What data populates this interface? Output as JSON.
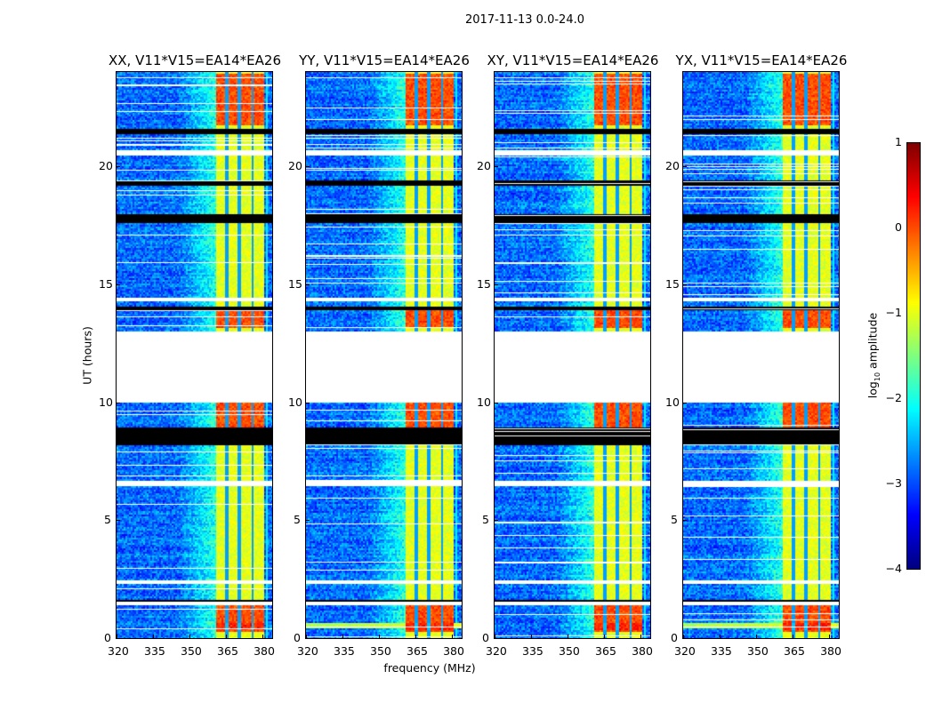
{
  "suptitle": "2017-11-13 0.0-24.0",
  "chart_data": {
    "type": "heatmap",
    "title": "2017-11-13 0.0-24.0",
    "xlabel": "frequency (MHz)",
    "ylabel": "UT (hours)",
    "xlim": [
      320,
      384
    ],
    "ylim": [
      0,
      24
    ],
    "xticks": [
      "320",
      "335",
      "350",
      "365",
      "380"
    ],
    "xtick_values": [
      320,
      335,
      350,
      365,
      380
    ],
    "yticks": [
      "0",
      "5",
      "10",
      "15",
      "20"
    ],
    "ytick_values": [
      0,
      5,
      10,
      15,
      20
    ],
    "colormap": "jet",
    "colorbar": {
      "label_prefix": "log",
      "label_sub": "10",
      "label_suffix": " amplitude",
      "range": [
        -4,
        1
      ],
      "ticks": [
        "1",
        "0",
        "−1",
        "−2",
        "−3",
        "−4"
      ],
      "tick_values": [
        1,
        0,
        -1,
        -2,
        -3,
        -4
      ]
    },
    "panels": [
      {
        "title": "XX, V11*V15=EA14*EA26",
        "low_band_line": false
      },
      {
        "title": "YY, V11*V15=EA14*EA26",
        "low_band_line": true
      },
      {
        "title": "XY, V11*V15=EA14*EA26",
        "low_band_line": false
      },
      {
        "title": "YX, V11*V15=EA14*EA26",
        "low_band_line": true
      }
    ],
    "strong_band_mhz": [
      360.5,
      380
    ],
    "notch_channels_mhz": [
      365,
      370,
      375.5
    ],
    "background_log_amplitude": -3,
    "band_log_amplitude": -1,
    "strong_periods_hours": [
      [
        21.8,
        24
      ],
      [
        13.2,
        14
      ],
      [
        8.9,
        10
      ],
      [
        0.3,
        1.4
      ]
    ],
    "flagged_blank_hours": [
      [
        10.0,
        13.0
      ],
      [
        20.5,
        20.75
      ],
      [
        6.5,
        6.7
      ],
      [
        1.45,
        1.55
      ],
      [
        14.3,
        14.45
      ],
      [
        2.35,
        2.45
      ]
    ],
    "flagged_black_hours": [
      [
        8.2,
        9.0
      ],
      [
        21.4,
        21.6
      ],
      [
        19.2,
        19.45
      ],
      [
        17.6,
        18.0
      ],
      [
        13.95,
        14.1
      ],
      [
        1.55,
        1.65
      ],
      [
        22.5,
        22.55
      ]
    ]
  }
}
